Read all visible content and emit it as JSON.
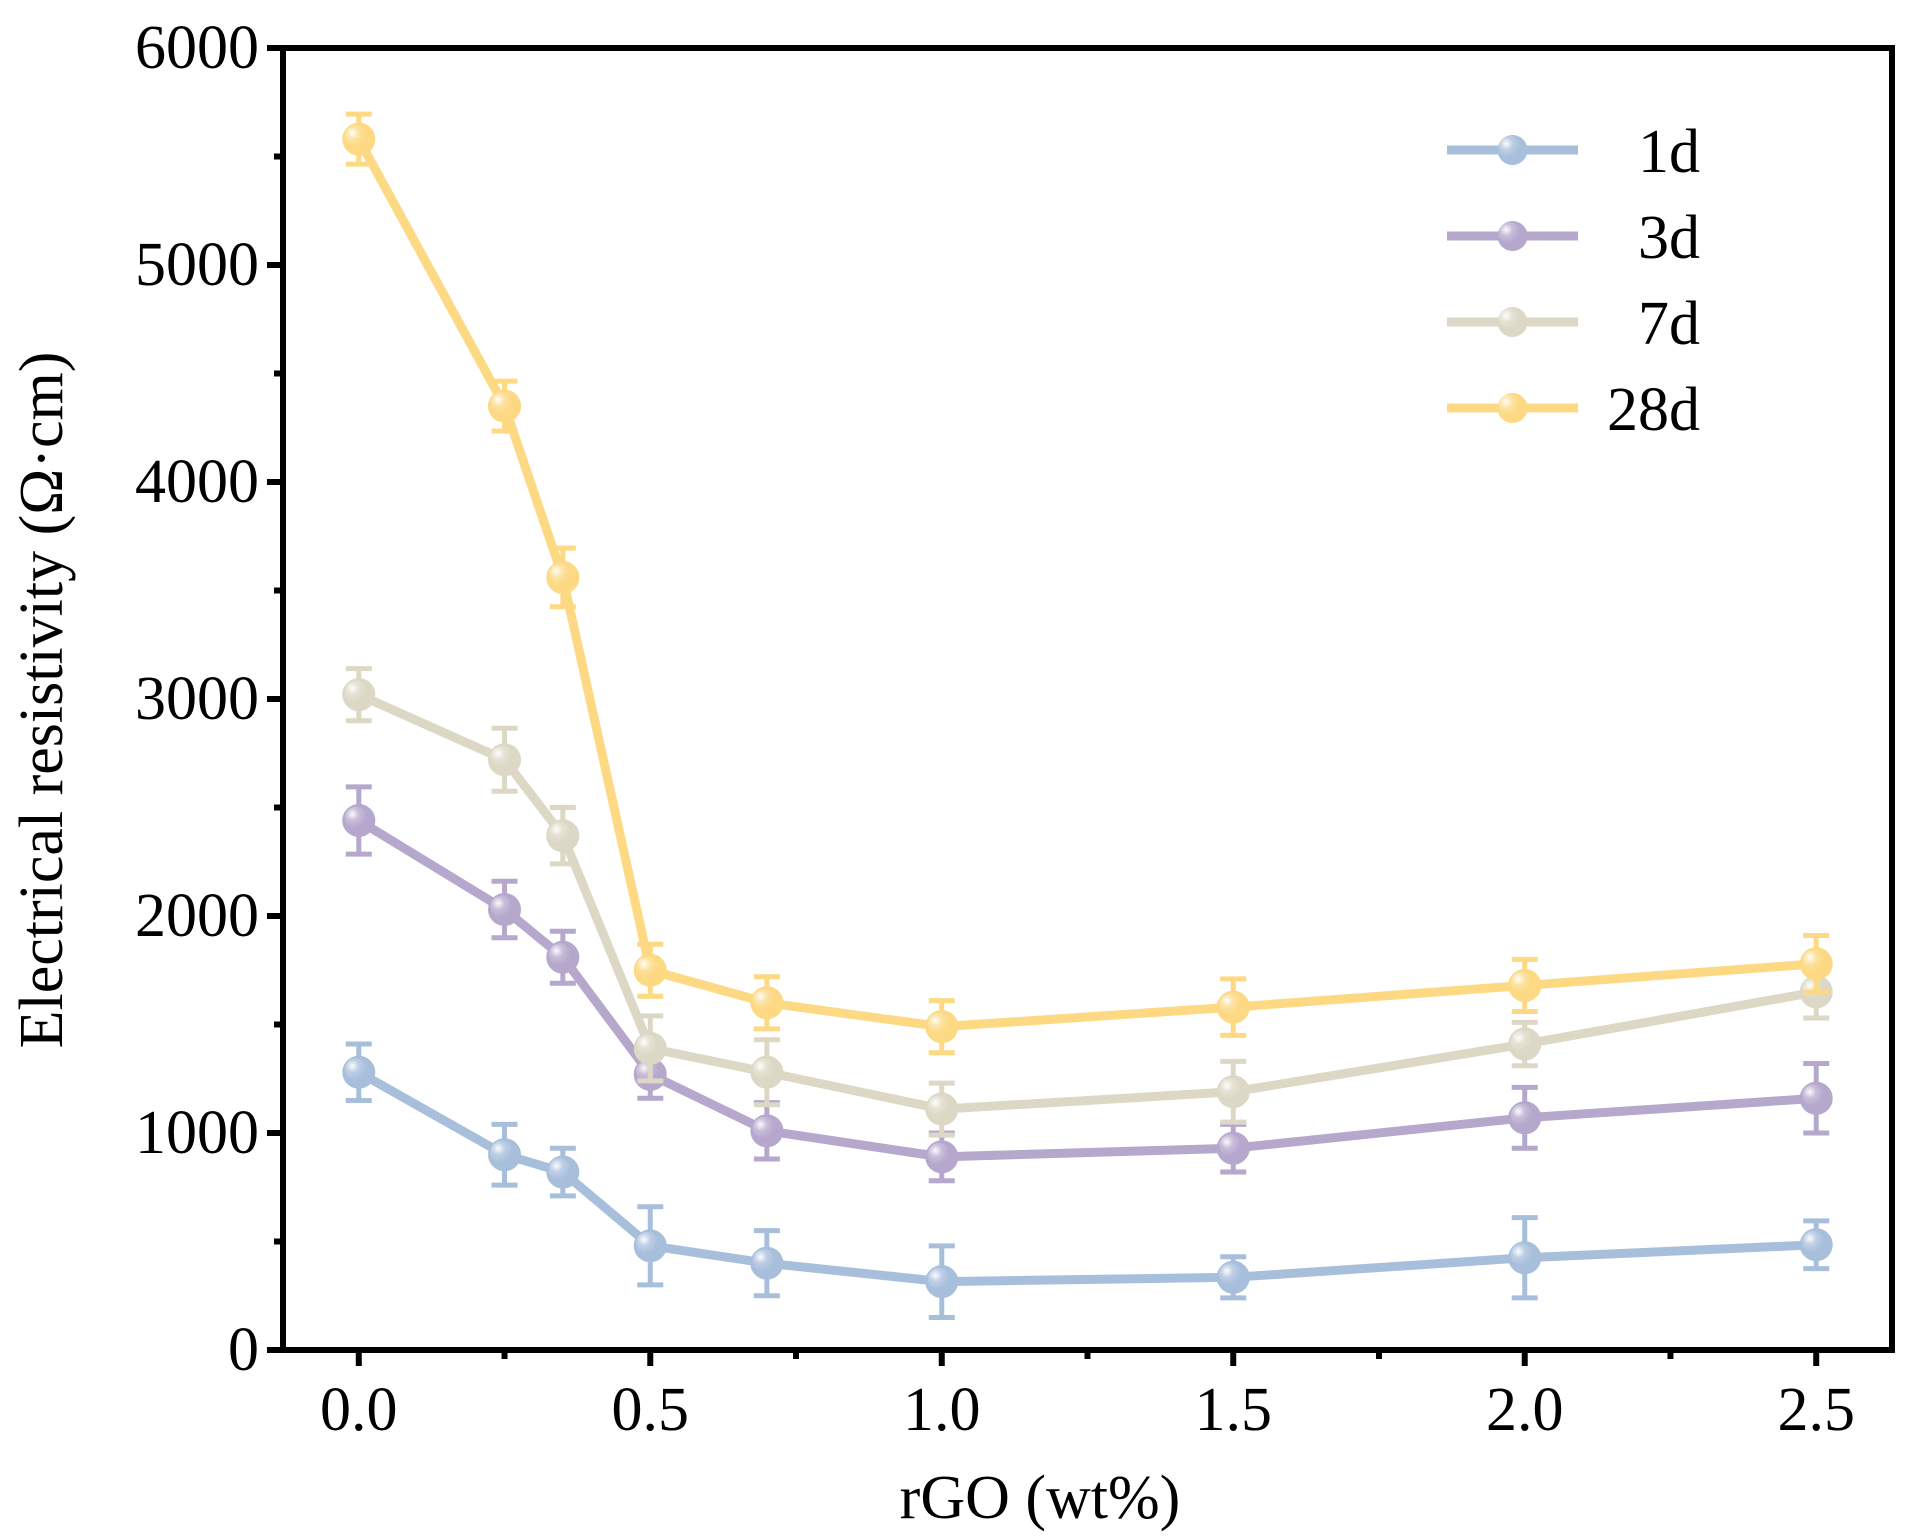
{
  "chart_data": {
    "type": "line",
    "xlabel": "rGO (wt%)",
    "ylabel": "Electrical resistivity (Ω·cm)",
    "xlim": [
      -0.13,
      2.63
    ],
    "ylim": [
      0,
      6000
    ],
    "x_ticks": [
      0.0,
      0.5,
      1.0,
      1.5,
      2.0,
      2.5
    ],
    "x_tick_labels": [
      "0.0",
      "0.5",
      "1.0",
      "1.5",
      "2.0",
      "2.5"
    ],
    "x_minor_ticks": [
      0.25,
      0.75,
      1.25,
      1.75,
      2.25
    ],
    "y_ticks": [
      0,
      1000,
      2000,
      3000,
      4000,
      5000,
      6000
    ],
    "y_tick_labels": [
      "0",
      "1000",
      "2000",
      "3000",
      "4000",
      "5000",
      "6000"
    ],
    "y_minor_ticks": [
      500,
      1500,
      2500,
      3500,
      4500,
      5500
    ],
    "legend_position": "top-right",
    "x": [
      0.0,
      0.25,
      0.35,
      0.5,
      0.7,
      1.0,
      1.5,
      2.0,
      2.5
    ],
    "series": [
      {
        "name": "1d",
        "color": "#a8bfdc",
        "values": [
          1280,
          900,
          820,
          480,
          400,
          315,
          335,
          425,
          485
        ],
        "errors": [
          130,
          140,
          110,
          180,
          150,
          165,
          95,
          185,
          110
        ]
      },
      {
        "name": "3d",
        "color": "#b6a7cc",
        "values": [
          2440,
          2030,
          1810,
          1270,
          1010,
          890,
          930,
          1070,
          1160
        ],
        "errors": [
          155,
          130,
          120,
          110,
          130,
          110,
          110,
          140,
          160
        ]
      },
      {
        "name": "7d",
        "color": "#dcd8c5",
        "values": [
          3020,
          2720,
          2370,
          1390,
          1280,
          1110,
          1190,
          1410,
          1650
        ],
        "errors": [
          120,
          145,
          130,
          150,
          150,
          120,
          140,
          100,
          120
        ]
      },
      {
        "name": "28d",
        "color": "#fcd982",
        "values": [
          5580,
          4350,
          3560,
          1750,
          1600,
          1490,
          1580,
          1680,
          1780
        ],
        "errors": [
          115,
          115,
          135,
          120,
          120,
          120,
          130,
          120,
          130
        ]
      }
    ]
  }
}
